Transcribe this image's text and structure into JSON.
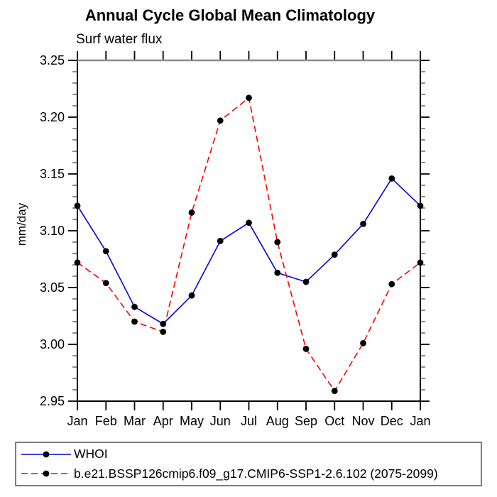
{
  "chart_data": {
    "type": "line",
    "title": "Annual Cycle Global Mean Climatology",
    "subtitle": "Surf water flux",
    "ylabel": "mm/day",
    "xlabel": "",
    "categories": [
      "Jan",
      "Feb",
      "Mar",
      "Apr",
      "May",
      "Jun",
      "Jul",
      "Aug",
      "Sep",
      "Oct",
      "Nov",
      "Dec",
      "Jan"
    ],
    "ylim": [
      2.95,
      3.25
    ],
    "ytick_major_step": 0.05,
    "ytick_minor_step": 0.01,
    "ytick_labels": [
      "3.25",
      "3.20",
      "3.15",
      "3.10",
      "3.05",
      "3.00",
      "2.95"
    ],
    "grid": false,
    "legend_position": "bottom",
    "series": [
      {
        "name": "WHOI",
        "color": "#0000e6",
        "line_style": "solid",
        "marker": "circle",
        "marker_color": "#000000",
        "values": [
          3.122,
          3.082,
          3.033,
          3.018,
          3.043,
          3.091,
          3.107,
          3.063,
          3.055,
          3.079,
          3.106,
          3.146,
          3.122
        ]
      },
      {
        "name": "b.e21.BSSP126cmip6.f09_g17.CMIP6-SSP1-2.6.102 (2075-2099)",
        "color": "#ff0000",
        "line_style": "dashed",
        "marker": "circle",
        "marker_color": "#000000",
        "values": [
          3.072,
          3.054,
          3.02,
          3.011,
          3.116,
          3.197,
          3.217,
          3.09,
          2.996,
          2.959,
          3.001,
          3.053,
          3.072
        ]
      }
    ]
  },
  "colors": {
    "frame": "#000000",
    "top_border": "#8c8c8c",
    "minor_tick": "#444444",
    "legend_border": "#7d7d7d",
    "background": "#ffffff"
  }
}
